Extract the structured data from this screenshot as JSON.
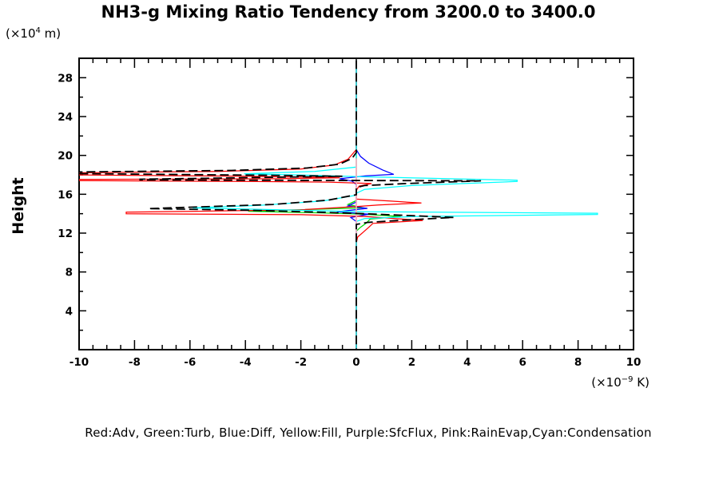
{
  "title": "NH3-g Mixing Ratio Tendency from 3200.0 to 3400.0",
  "labels": {
    "y_axis": "Height",
    "y_unit_prefix": "(×10",
    "y_unit_exp": "4",
    "y_unit_suffix": " m)",
    "x_unit_prefix": "(×10",
    "x_unit_exp": "−9",
    "x_unit_suffix": " K)"
  },
  "legend_text": "Red:Adv, Green:Turb, Blue:Diff, Yellow:Fill, Purple:SfcFlux, Pink:RainEvap,Cyan:Condensation",
  "colors": {
    "red": "#ff0000",
    "green": "#00d900",
    "blue": "#0000ff",
    "yellow": "#ffff00",
    "purple": "#9900cc",
    "pink": "#ffb0c8",
    "cyan": "#00ffff",
    "black": "#000000",
    "frame": "#000000",
    "background": "#ffffff"
  },
  "chart_data": {
    "type": "line",
    "title": "NH3-g Mixing Ratio Tendency from 3200.0 to 3400.0",
    "xlabel": "(x10^-9 K)",
    "ylabel": "Height (x10^4 m)",
    "xlim": [
      -10,
      10
    ],
    "ylim": [
      0,
      30
    ],
    "x_major_ticks": [
      -10,
      -8,
      -6,
      -4,
      -2,
      0,
      2,
      4,
      6,
      8,
      10
    ],
    "x_minor_step": 0.5,
    "y_major_ticks": [
      4,
      8,
      12,
      16,
      20,
      24,
      28
    ],
    "y_minor_step": 2,
    "grid": false,
    "zero_reference_line": {
      "x": 0,
      "color": "#00ffff"
    },
    "legend_position": "bottom",
    "series": [
      {
        "name": "Fill",
        "color": "#ffff00",
        "style": "solid",
        "points": [
          [
            0,
            29.8
          ],
          [
            0,
            0.1
          ]
        ]
      },
      {
        "name": "SfcFlux",
        "color": "#9900cc",
        "style": "solid",
        "points": [
          [
            0,
            29.8
          ],
          [
            0,
            0.1
          ]
        ]
      },
      {
        "name": "Turb",
        "color": "#00d900",
        "style": "solid",
        "points": [
          [
            0,
            29.8
          ],
          [
            0,
            15.35
          ],
          [
            -0.3,
            14.95
          ],
          [
            0.25,
            14.6
          ],
          [
            -3.9,
            14.25
          ],
          [
            -1.2,
            14.08
          ],
          [
            0.2,
            13.95
          ],
          [
            1.6,
            13.72
          ],
          [
            0.5,
            13.45
          ],
          [
            0.35,
            13.0
          ],
          [
            0.15,
            12.6
          ],
          [
            0,
            12.2
          ],
          [
            0,
            0.1
          ]
        ]
      },
      {
        "name": "Diff",
        "color": "#0000ff",
        "style": "solid",
        "points": [
          [
            0,
            29.8
          ],
          [
            0,
            20.6
          ],
          [
            0.15,
            19.9
          ],
          [
            0.45,
            19.2
          ],
          [
            0.95,
            18.5
          ],
          [
            1.35,
            18.05
          ],
          [
            0.35,
            17.9
          ],
          [
            -0.6,
            17.6
          ],
          [
            -0.15,
            17.35
          ],
          [
            0,
            17.0
          ],
          [
            0,
            15.2
          ],
          [
            -0.3,
            14.8
          ],
          [
            0.4,
            14.55
          ],
          [
            -0.7,
            14.2
          ],
          [
            0.45,
            13.95
          ],
          [
            -0.2,
            13.6
          ],
          [
            0,
            13.2
          ],
          [
            0,
            0.1
          ]
        ]
      },
      {
        "name": "Adv",
        "color": "#ff0000",
        "style": "solid",
        "points": [
          [
            0,
            29.8
          ],
          [
            0,
            20.6
          ],
          [
            -0.3,
            19.6
          ],
          [
            -0.8,
            19.0
          ],
          [
            -2,
            18.6
          ],
          [
            -5,
            18.35
          ],
          [
            -10.6,
            18.2
          ],
          [
            -10.6,
            18.0
          ],
          [
            -4,
            17.85
          ],
          [
            -0.6,
            17.7
          ],
          [
            -3,
            17.6
          ],
          [
            -10.6,
            17.52
          ],
          [
            -10.6,
            17.42
          ],
          [
            -4,
            17.33
          ],
          [
            -1,
            17.25
          ],
          [
            0.55,
            17.1
          ],
          [
            0.1,
            16.85
          ],
          [
            0,
            16.4
          ],
          [
            0,
            15.5
          ],
          [
            1.2,
            15.3
          ],
          [
            2.35,
            15.1
          ],
          [
            0.8,
            14.9
          ],
          [
            0.1,
            14.75
          ],
          [
            -2,
            14.4
          ],
          [
            -8.3,
            14.15
          ],
          [
            -8.3,
            14.0
          ],
          [
            -2,
            13.9
          ],
          [
            0.3,
            13.72
          ],
          [
            2.4,
            13.3
          ],
          [
            0.6,
            13.0
          ],
          [
            0.45,
            12.6
          ],
          [
            0.25,
            12.1
          ],
          [
            0.05,
            11.6
          ],
          [
            0,
            11.0
          ],
          [
            0,
            0.1
          ]
        ]
      },
      {
        "name": "Condensation",
        "color": "#00ffff",
        "style": "solid",
        "points": [
          [
            0,
            29.8
          ],
          [
            0,
            18.8
          ],
          [
            -1.5,
            18.35
          ],
          [
            -4.05,
            18.1
          ],
          [
            -1.5,
            17.95
          ],
          [
            0.2,
            17.8
          ],
          [
            5.8,
            17.45
          ],
          [
            5.8,
            17.32
          ],
          [
            2,
            16.9
          ],
          [
            0.3,
            16.5
          ],
          [
            0,
            16.1
          ],
          [
            0,
            15.9
          ],
          [
            -1.2,
            15.3
          ],
          [
            -3.5,
            14.85
          ],
          [
            -5.9,
            14.6
          ],
          [
            -2,
            14.35
          ],
          [
            0.3,
            14.2
          ],
          [
            8.7,
            14.05
          ],
          [
            8.7,
            13.92
          ],
          [
            2,
            13.7
          ],
          [
            0.3,
            13.5
          ],
          [
            0,
            13.2
          ],
          [
            0,
            0.1
          ]
        ]
      },
      {
        "name": "RainEvap",
        "color": "#ffb0c8",
        "style": "solid",
        "points": [
          [
            0,
            19.7
          ],
          [
            0,
            11.4
          ]
        ]
      },
      {
        "name": "black-dashed-net",
        "color": "#000000",
        "style": "dashed",
        "points": [
          [
            0,
            29.8
          ],
          [
            0,
            20.3
          ],
          [
            -0.15,
            19.7
          ],
          [
            -0.6,
            19.1
          ],
          [
            -1.8,
            18.7
          ],
          [
            -4.5,
            18.45
          ],
          [
            -10.6,
            18.28
          ],
          [
            -10.6,
            18.14
          ],
          [
            -3,
            17.95
          ],
          [
            -0.5,
            17.85
          ],
          [
            -7.8,
            17.55
          ],
          [
            -7.8,
            17.47
          ],
          [
            4.5,
            17.38
          ],
          [
            1.8,
            17.1
          ],
          [
            0.3,
            16.9
          ],
          [
            0,
            16.7
          ],
          [
            0,
            15.95
          ],
          [
            -1,
            15.4
          ],
          [
            -3,
            14.95
          ],
          [
            -7.5,
            14.52
          ],
          [
            -4,
            14.37
          ],
          [
            -1.5,
            14.17
          ],
          [
            0.3,
            14.0
          ],
          [
            3.5,
            13.62
          ],
          [
            1.5,
            13.3
          ],
          [
            0.4,
            13.1
          ],
          [
            0,
            12.9
          ],
          [
            0,
            0.1
          ]
        ]
      }
    ]
  }
}
